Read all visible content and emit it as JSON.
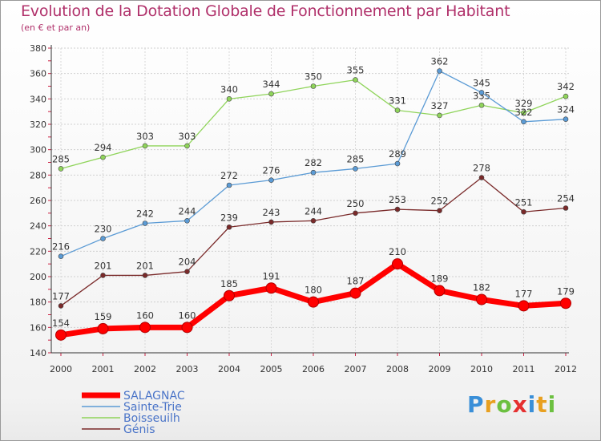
{
  "title": "Evolution de la Dotation Globale de Fonctionnement par Habitant",
  "subtitle": "(en € et par an)",
  "logo": {
    "text": "Proxiti",
    "colors": [
      "#3a8fd8",
      "#e8a020",
      "#6cc040",
      "#e53030",
      "#3a8fd8",
      "#e8a020",
      "#6cc040"
    ]
  },
  "chart_data": {
    "type": "line",
    "x": [
      "2000",
      "2001",
      "2002",
      "2003",
      "2004",
      "2005",
      "2006",
      "2007",
      "2008",
      "2009",
      "2010",
      "2011",
      "2012"
    ],
    "ylim": [
      140,
      380
    ],
    "yticks": [
      "140",
      "160",
      "180",
      "200",
      "220",
      "240",
      "260",
      "280",
      "300",
      "320",
      "340",
      "360",
      "380"
    ],
    "grid": true,
    "legend_position": "bottom-left",
    "series": [
      {
        "name": "Boisseuilh",
        "color": "#8fd45a",
        "values": [
          285,
          294,
          303,
          303,
          340,
          344,
          350,
          355,
          331,
          327,
          335,
          329,
          342
        ],
        "labels": [
          "285",
          "294",
          "303",
          "303",
          "340",
          "344",
          "350",
          "355",
          "331",
          "327",
          "335",
          "329",
          "342"
        ]
      },
      {
        "name": "Sainte-Trie",
        "color": "#5b9bd5",
        "values": [
          216,
          230,
          242,
          244,
          272,
          276,
          282,
          285,
          289,
          362,
          345,
          322,
          324
        ],
        "labels": [
          "216",
          "230",
          "242",
          "244",
          "272",
          "276",
          "282",
          "285",
          "289",
          "362",
          "345",
          "322",
          "324"
        ]
      },
      {
        "name": "Génis",
        "color": "#7a2a2a",
        "values": [
          177,
          201,
          201,
          204,
          239,
          243,
          244,
          250,
          253,
          252,
          278,
          251,
          254
        ],
        "labels": [
          "177",
          "201",
          "201",
          "204",
          "239",
          "243",
          "244",
          "250",
          "253",
          "252",
          "278",
          "251",
          "254"
        ]
      },
      {
        "name": "SALAGNAC",
        "color": "#ff0000",
        "values": [
          154,
          159,
          160,
          160,
          185,
          191,
          180,
          187,
          210,
          189,
          182,
          177,
          179
        ],
        "labels": [
          "154",
          "159",
          "160",
          "160",
          "185",
          "191",
          "180",
          "187",
          "210",
          "189",
          "182",
          "177",
          "179"
        ]
      }
    ],
    "legend": [
      {
        "name": "SALAGNAC",
        "color": "#ff0000"
      },
      {
        "name": "Sainte-Trie",
        "color": "#5b9bd5"
      },
      {
        "name": "Boisseuilh",
        "color": "#8fd45a"
      },
      {
        "name": "Génis",
        "color": "#7a2a2a"
      }
    ]
  }
}
